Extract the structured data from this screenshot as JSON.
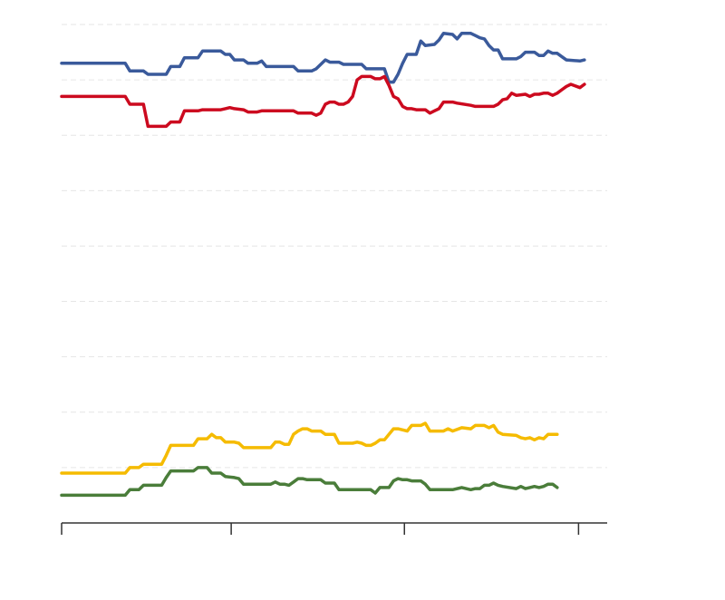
{
  "chart_data": {
    "type": "line",
    "title": "",
    "xlabel": "",
    "ylabel": "",
    "grid": true,
    "legend": "none",
    "x_range": [
      0,
      120
    ],
    "y_range": [
      0,
      45
    ],
    "y_gridlines": [
      5,
      10,
      15,
      20,
      25,
      30,
      35,
      40,
      45
    ],
    "x_ticks": [
      0,
      37.3,
      75.4,
      113.7
    ],
    "series": [
      {
        "color": "#3a5a9b",
        "points": [
          [
            0,
            41.5
          ],
          [
            14,
            41.5
          ],
          [
            15,
            40.8
          ],
          [
            18,
            40.8
          ],
          [
            19,
            40.5
          ],
          [
            23,
            40.5
          ],
          [
            24,
            41.2
          ],
          [
            26,
            41.2
          ],
          [
            27,
            42
          ],
          [
            30,
            42
          ],
          [
            31,
            42.6
          ],
          [
            35,
            42.6
          ],
          [
            36,
            42.3
          ],
          [
            37,
            42.3
          ],
          [
            38,
            41.8
          ],
          [
            40,
            41.8
          ],
          [
            41,
            41.5
          ],
          [
            43,
            41.5
          ],
          [
            44,
            41.7
          ],
          [
            45,
            41.2
          ],
          [
            51,
            41.2
          ],
          [
            52,
            40.8
          ],
          [
            55,
            40.8
          ],
          [
            56,
            41
          ],
          [
            58,
            41.8
          ],
          [
            59,
            41.6
          ],
          [
            61,
            41.6
          ],
          [
            62,
            41.4
          ],
          [
            66,
            41.4
          ],
          [
            67,
            41
          ],
          [
            71,
            41
          ],
          [
            72,
            39.8
          ],
          [
            73,
            39.8
          ],
          [
            74,
            40.5
          ],
          [
            75,
            41.5
          ],
          [
            76,
            42.3
          ],
          [
            78,
            42.3
          ],
          [
            79,
            43.5
          ],
          [
            80,
            43.1
          ],
          [
            82,
            43.2
          ],
          [
            83,
            43.6
          ],
          [
            84,
            44.2
          ],
          [
            86,
            44.1
          ],
          [
            87,
            43.7
          ],
          [
            88,
            44.2
          ],
          [
            90,
            44.2
          ],
          [
            91,
            44
          ],
          [
            92,
            43.8
          ],
          [
            93,
            43.7
          ],
          [
            94,
            43.1
          ],
          [
            95,
            42.7
          ],
          [
            96,
            42.7
          ],
          [
            97,
            41.9
          ],
          [
            100,
            41.9
          ],
          [
            101,
            42.1
          ],
          [
            102,
            42.5
          ],
          [
            104,
            42.5
          ],
          [
            105,
            42.2
          ],
          [
            106,
            42.2
          ],
          [
            107,
            42.6
          ],
          [
            108,
            42.4
          ],
          [
            109,
            42.4
          ],
          [
            110,
            42.1
          ],
          [
            111,
            41.8
          ],
          [
            114,
            41.7
          ],
          [
            115,
            41.8
          ]
        ]
      },
      {
        "color": "#cc0a1f",
        "points": [
          [
            0,
            38.5
          ],
          [
            14,
            38.5
          ],
          [
            15,
            37.8
          ],
          [
            18,
            37.8
          ],
          [
            19,
            35.8
          ],
          [
            23,
            35.8
          ],
          [
            24,
            36.2
          ],
          [
            26,
            36.2
          ],
          [
            27,
            37.2
          ],
          [
            30,
            37.2
          ],
          [
            31,
            37.3
          ],
          [
            35,
            37.3
          ],
          [
            36,
            37.4
          ],
          [
            37,
            37.5
          ],
          [
            38,
            37.4
          ],
          [
            40,
            37.3
          ],
          [
            41,
            37.1
          ],
          [
            43,
            37.1
          ],
          [
            44,
            37.2
          ],
          [
            51,
            37.2
          ],
          [
            52,
            37
          ],
          [
            55,
            37
          ],
          [
            56,
            36.8
          ],
          [
            57,
            37
          ],
          [
            58,
            37.8
          ],
          [
            59,
            38
          ],
          [
            60,
            38
          ],
          [
            61,
            37.8
          ],
          [
            62,
            37.8
          ],
          [
            63,
            38
          ],
          [
            64,
            38.5
          ],
          [
            65,
            40
          ],
          [
            66,
            40.3
          ],
          [
            68,
            40.3
          ],
          [
            69,
            40.1
          ],
          [
            70,
            40.1
          ],
          [
            71,
            40.3
          ],
          [
            72,
            39.5
          ],
          [
            73,
            38.5
          ],
          [
            74,
            38.3
          ],
          [
            75,
            37.6
          ],
          [
            76,
            37.4
          ],
          [
            77,
            37.4
          ],
          [
            78,
            37.3
          ],
          [
            80,
            37.3
          ],
          [
            81,
            37
          ],
          [
            82,
            37.2
          ],
          [
            83,
            37.4
          ],
          [
            84,
            38
          ],
          [
            86,
            38
          ],
          [
            87,
            37.9
          ],
          [
            90,
            37.7
          ],
          [
            91,
            37.6
          ],
          [
            95,
            37.6
          ],
          [
            96,
            37.8
          ],
          [
            97,
            38.2
          ],
          [
            98,
            38.3
          ],
          [
            99,
            38.8
          ],
          [
            100,
            38.6
          ],
          [
            102,
            38.7
          ],
          [
            103,
            38.5
          ],
          [
            104,
            38.7
          ],
          [
            105,
            38.7
          ],
          [
            106,
            38.8
          ],
          [
            107,
            38.8
          ],
          [
            108,
            38.6
          ],
          [
            109,
            38.8
          ],
          [
            110,
            39.1
          ],
          [
            111,
            39.4
          ],
          [
            112,
            39.6
          ],
          [
            114,
            39.3
          ],
          [
            115,
            39.6
          ]
        ]
      },
      {
        "color": "#f5bb00",
        "points": [
          [
            0,
            4.5
          ],
          [
            14,
            4.5
          ],
          [
            15,
            5
          ],
          [
            17,
            5
          ],
          [
            18,
            5.3
          ],
          [
            22,
            5.3
          ],
          [
            23,
            6.1
          ],
          [
            24,
            7
          ],
          [
            29,
            7
          ],
          [
            30,
            7.6
          ],
          [
            32,
            7.6
          ],
          [
            33,
            8
          ],
          [
            34,
            7.7
          ],
          [
            35,
            7.7
          ],
          [
            36,
            7.3
          ],
          [
            38,
            7.3
          ],
          [
            39,
            7.2
          ],
          [
            40,
            6.8
          ],
          [
            43,
            6.8
          ],
          [
            44,
            6.8
          ],
          [
            46,
            6.8
          ],
          [
            47,
            7.3
          ],
          [
            48,
            7.3
          ],
          [
            49,
            7.1
          ],
          [
            50,
            7.1
          ],
          [
            51,
            8
          ],
          [
            52,
            8.3
          ],
          [
            53,
            8.5
          ],
          [
            54,
            8.5
          ],
          [
            55,
            8.3
          ],
          [
            57,
            8.3
          ],
          [
            58,
            8
          ],
          [
            60,
            8
          ],
          [
            61,
            7.2
          ],
          [
            64,
            7.2
          ],
          [
            65,
            7.3
          ],
          [
            66,
            7.2
          ],
          [
            67,
            7
          ],
          [
            68,
            7
          ],
          [
            69,
            7.2
          ],
          [
            70,
            7.5
          ],
          [
            71,
            7.5
          ],
          [
            72,
            8
          ],
          [
            73,
            8.5
          ],
          [
            74,
            8.5
          ],
          [
            75,
            8.4
          ],
          [
            76,
            8.3
          ],
          [
            77,
            8.8
          ],
          [
            79,
            8.8
          ],
          [
            80,
            9
          ],
          [
            81,
            8.3
          ],
          [
            84,
            8.3
          ],
          [
            85,
            8.5
          ],
          [
            86,
            8.3
          ],
          [
            88,
            8.6
          ],
          [
            90,
            8.5
          ],
          [
            91,
            8.8
          ],
          [
            92,
            8.8
          ],
          [
            93,
            8.8
          ],
          [
            94,
            8.6
          ],
          [
            95,
            8.8
          ],
          [
            96,
            8.2
          ],
          [
            97,
            8
          ],
          [
            100,
            7.9
          ],
          [
            101,
            7.7
          ],
          [
            102,
            7.6
          ],
          [
            103,
            7.7
          ],
          [
            104,
            7.5
          ],
          [
            105,
            7.7
          ],
          [
            106,
            7.6
          ],
          [
            107,
            8
          ],
          [
            108,
            8
          ],
          [
            109,
            8
          ]
        ]
      },
      {
        "color": "#4a7d3a",
        "points": [
          [
            0,
            2.5
          ],
          [
            14,
            2.5
          ],
          [
            15,
            3
          ],
          [
            17,
            3
          ],
          [
            18,
            3.4
          ],
          [
            22,
            3.4
          ],
          [
            23,
            4.1
          ],
          [
            24,
            4.7
          ],
          [
            29,
            4.7
          ],
          [
            30,
            5
          ],
          [
            31,
            5
          ],
          [
            32,
            5
          ],
          [
            33,
            4.5
          ],
          [
            35,
            4.5
          ],
          [
            36,
            4.2
          ],
          [
            38,
            4.1
          ],
          [
            39,
            4
          ],
          [
            40,
            3.5
          ],
          [
            43,
            3.5
          ],
          [
            44,
            3.5
          ],
          [
            46,
            3.5
          ],
          [
            47,
            3.7
          ],
          [
            48,
            3.5
          ],
          [
            49,
            3.5
          ],
          [
            50,
            3.4
          ],
          [
            51,
            3.7
          ],
          [
            52,
            4
          ],
          [
            53,
            4
          ],
          [
            54,
            3.9
          ],
          [
            57,
            3.9
          ],
          [
            58,
            3.6
          ],
          [
            60,
            3.6
          ],
          [
            61,
            3
          ],
          [
            64,
            3
          ],
          [
            65,
            3
          ],
          [
            66,
            3
          ],
          [
            67,
            3
          ],
          [
            68,
            3
          ],
          [
            69,
            2.7
          ],
          [
            70,
            3.2
          ],
          [
            71,
            3.2
          ],
          [
            72,
            3.2
          ],
          [
            73,
            3.8
          ],
          [
            74,
            4
          ],
          [
            75,
            3.9
          ],
          [
            76,
            3.9
          ],
          [
            77,
            3.8
          ],
          [
            79,
            3.8
          ],
          [
            80,
            3.5
          ],
          [
            81,
            3
          ],
          [
            84,
            3
          ],
          [
            85,
            3
          ],
          [
            86,
            3
          ],
          [
            88,
            3.2
          ],
          [
            90,
            3
          ],
          [
            91,
            3.1
          ],
          [
            92,
            3.1
          ],
          [
            93,
            3.4
          ],
          [
            94,
            3.4
          ],
          [
            95,
            3.6
          ],
          [
            96,
            3.4
          ],
          [
            97,
            3.3
          ],
          [
            100,
            3.1
          ],
          [
            101,
            3.3
          ],
          [
            102,
            3.1
          ],
          [
            103,
            3.2
          ],
          [
            104,
            3.3
          ],
          [
            105,
            3.2
          ],
          [
            106,
            3.3
          ],
          [
            107,
            3.5
          ],
          [
            108,
            3.5
          ],
          [
            109,
            3.2
          ]
        ]
      }
    ]
  }
}
